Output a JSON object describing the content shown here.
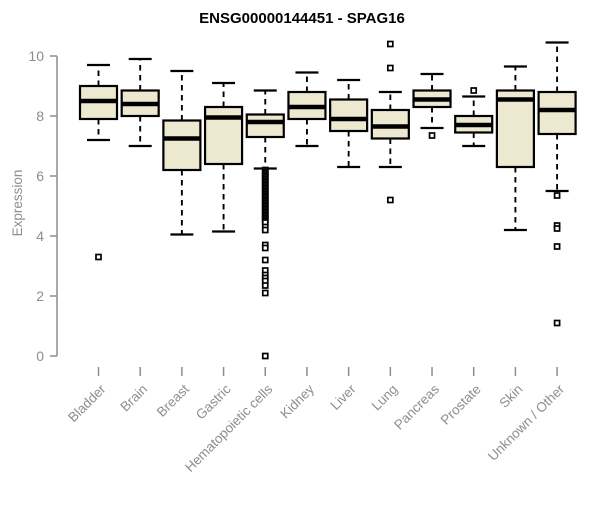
{
  "title": "ENSG00000144451 - SPAG16",
  "colors": {
    "background": "#ffffff",
    "box_fill": "#ede8d0",
    "box_border": "#000000",
    "median_line": "#000000",
    "whisker": "#000000",
    "outlier_stroke": "#000000",
    "outlier_fill": "#ffffff",
    "axis": "#8e8e8e",
    "axis_text": "#8e8e8e",
    "title_text": "#000000"
  },
  "chart_data": {
    "type": "boxplot",
    "title": "ENSG00000144451 - SPAG16",
    "xlabel": "",
    "ylabel": "Expression",
    "ylim": [
      0,
      10.6
    ],
    "yticks": [
      0,
      2,
      4,
      6,
      8,
      10
    ],
    "grid": false,
    "legend": false,
    "x_tick_rotation_deg": 45,
    "categories": [
      "Bladder",
      "Brain",
      "Breast",
      "Gastric",
      "Hematopoietic cells",
      "Kidney",
      "Liver",
      "Lung",
      "Pancreas",
      "Prostate",
      "Skin",
      "Unknown / Other"
    ],
    "series": [
      {
        "name": "Bladder",
        "whisker_low": 7.2,
        "q1": 7.9,
        "median": 8.5,
        "q3": 9.0,
        "whisker_high": 9.7,
        "outliers": [
          3.3
        ]
      },
      {
        "name": "Brain",
        "whisker_low": 7.0,
        "q1": 8.0,
        "median": 8.4,
        "q3": 8.85,
        "whisker_high": 9.9,
        "outliers": []
      },
      {
        "name": "Breast",
        "whisker_low": 4.05,
        "q1": 6.2,
        "median": 7.25,
        "q3": 7.85,
        "whisker_high": 9.5,
        "outliers": []
      },
      {
        "name": "Gastric",
        "whisker_low": 4.15,
        "q1": 6.4,
        "median": 7.95,
        "q3": 8.3,
        "whisker_high": 9.1,
        "outliers": []
      },
      {
        "name": "Hematopoietic cells",
        "whisker_low": 6.25,
        "q1": 7.3,
        "median": 7.8,
        "q3": 8.05,
        "whisker_high": 8.85,
        "outliers": [
          6.2,
          6.15,
          6.1,
          6.05,
          6.0,
          5.95,
          5.9,
          5.85,
          5.8,
          5.75,
          5.7,
          5.65,
          5.6,
          5.55,
          5.5,
          5.45,
          5.4,
          5.35,
          5.3,
          5.25,
          5.2,
          5.15,
          5.1,
          5.05,
          5.0,
          4.95,
          4.9,
          4.85,
          4.8,
          4.75,
          4.7,
          4.65,
          4.6,
          4.55,
          4.5,
          4.45,
          4.3,
          4.2,
          3.7,
          3.6,
          3.2,
          2.85,
          2.7,
          2.6,
          2.5,
          2.35,
          2.1,
          0.0
        ]
      },
      {
        "name": "Kidney",
        "whisker_low": 7.0,
        "q1": 7.9,
        "median": 8.3,
        "q3": 8.8,
        "whisker_high": 9.45,
        "outliers": []
      },
      {
        "name": "Liver",
        "whisker_low": 6.3,
        "q1": 7.5,
        "median": 7.9,
        "q3": 8.55,
        "whisker_high": 9.2,
        "outliers": []
      },
      {
        "name": "Lung",
        "whisker_low": 6.3,
        "q1": 7.25,
        "median": 7.65,
        "q3": 8.2,
        "whisker_high": 8.8,
        "outliers": [
          10.4,
          9.6,
          5.2
        ]
      },
      {
        "name": "Pancreas",
        "whisker_low": 7.6,
        "q1": 8.3,
        "median": 8.55,
        "q3": 8.85,
        "whisker_high": 9.4,
        "outliers": [
          7.35
        ]
      },
      {
        "name": "Prostate",
        "whisker_low": 7.0,
        "q1": 7.45,
        "median": 7.7,
        "q3": 8.0,
        "whisker_high": 8.65,
        "outliers": [
          8.85
        ]
      },
      {
        "name": "Skin",
        "whisker_low": 4.2,
        "q1": 6.3,
        "median": 8.55,
        "q3": 8.85,
        "whisker_high": 9.65,
        "outliers": []
      },
      {
        "name": "Unknown / Other",
        "whisker_low": 5.5,
        "q1": 7.4,
        "median": 8.2,
        "q3": 8.8,
        "whisker_high": 10.45,
        "outliers": [
          5.35,
          4.35,
          4.25,
          3.65,
          1.1
        ]
      }
    ]
  }
}
